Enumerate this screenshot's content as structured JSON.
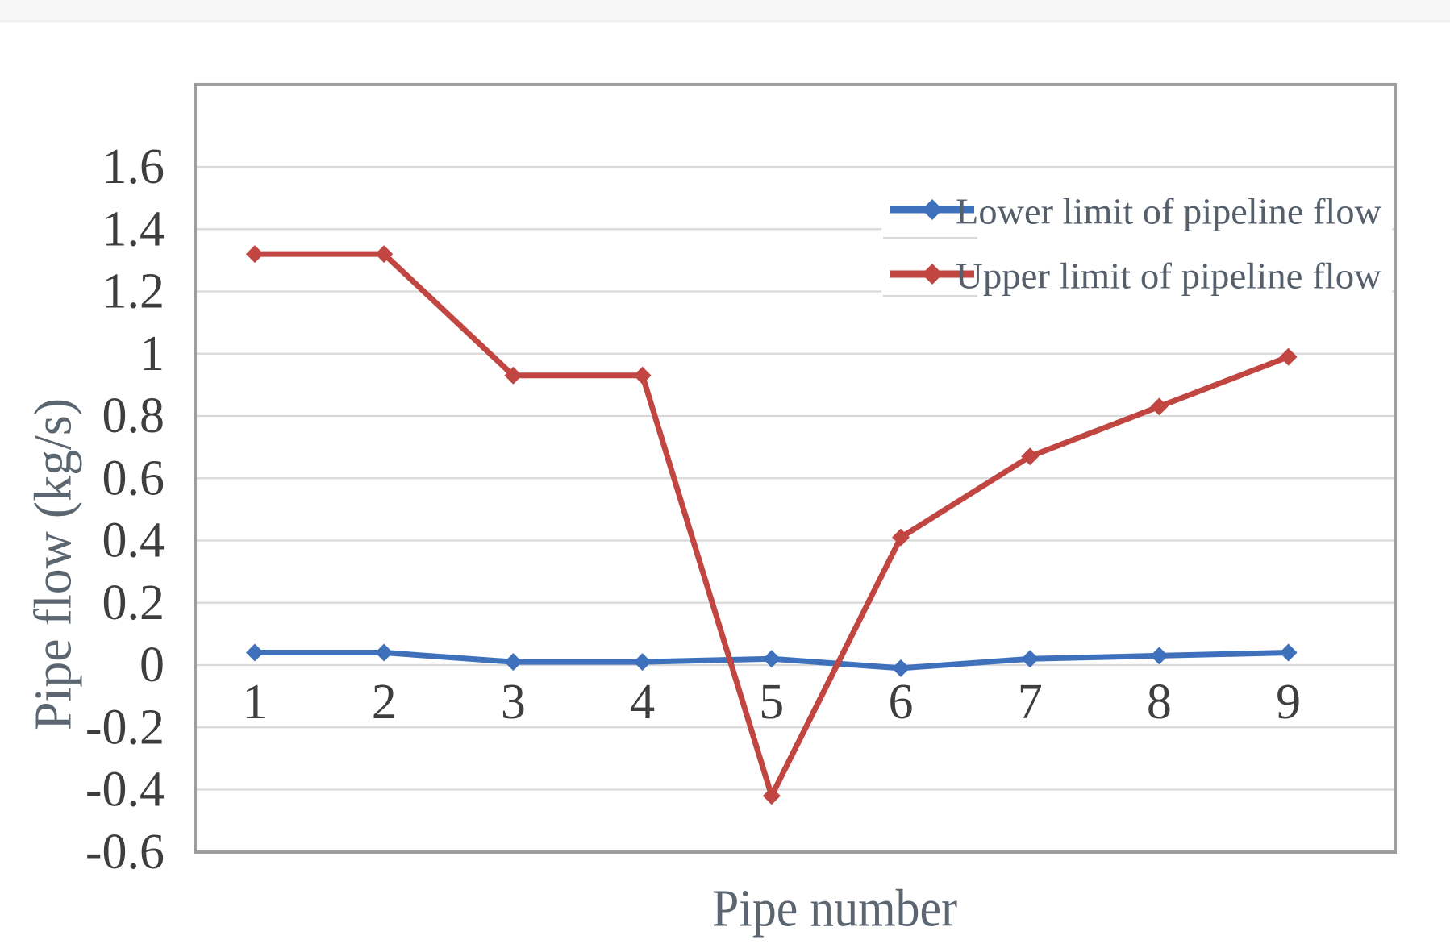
{
  "chart_data": {
    "type": "line",
    "title": "",
    "categories": [
      "1",
      "2",
      "3",
      "4",
      "5",
      "6",
      "7",
      "8",
      "9"
    ],
    "series": [
      {
        "name": "Lower limit of pipeline flow",
        "color": "#3E70BC",
        "marker": "diamond",
        "values": [
          0.04,
          0.04,
          0.01,
          0.01,
          0.02,
          -0.01,
          0.02,
          0.03,
          0.04
        ]
      },
      {
        "name": "Upper limit of pipeline flow",
        "color": "#C14540",
        "marker": "diamond",
        "values": [
          1.32,
          1.32,
          0.93,
          0.93,
          -0.42,
          0.41,
          0.67,
          0.83,
          0.99
        ]
      }
    ],
    "xlabel": "Pipe number",
    "ylabel": "Pipe flow (kg/s)",
    "y_ticks": [
      1.6,
      1.4,
      1.2,
      1,
      0.8,
      0.6,
      0.4,
      0.2,
      0,
      -0.2,
      -0.4,
      -0.6
    ],
    "ylim": [
      -0.6,
      1.87
    ],
    "grid": "horizontal",
    "legend_position": "top-right"
  },
  "style": {
    "background_color": "#FFFFFF",
    "top_band_color": "#F6F6F7",
    "top_band_edge_color": "#EAEAEA",
    "gridline_color": "#D9D9D9",
    "plot_border_color": "#9D9D9D",
    "tick_label_color": "#3E3E3E",
    "axis_title_color": "#5C6671",
    "legend_text_color": "#55606C",
    "legend_background_color": "#FFFFFF"
  }
}
